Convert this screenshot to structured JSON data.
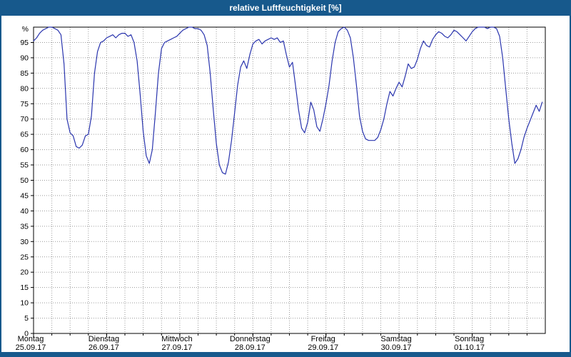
{
  "title": "relative Luftfeuchtigkeit [%]",
  "theme": {
    "titlebar_color": "#17598c",
    "line_color": "#2a35ae",
    "grid_color": "#9a9a9a",
    "axis_color": "#000000",
    "plot_background": "#ffffff",
    "title_text_color": "#ffffff"
  },
  "chart_data": {
    "type": "line",
    "title": "relative Luftfeuchtigkeit [%]",
    "ylabel": "relative Luftfeuchtigkeit",
    "y_unit": "%",
    "ylim": [
      0,
      100
    ],
    "y_step": 5,
    "y_ticks": [
      95,
      90,
      85,
      80,
      75,
      70,
      65,
      60,
      55,
      50,
      45,
      40,
      35,
      30,
      25,
      20,
      15,
      10,
      5,
      0
    ],
    "x_range": [
      0,
      168
    ],
    "x_unit": "hours",
    "x_minor_hours": 6,
    "grid": "dotted",
    "legend": "none",
    "x_days": [
      {
        "name": "Montag",
        "date": "25.09.17"
      },
      {
        "name": "Dienstag",
        "date": "26.09.17"
      },
      {
        "name": "Mittwoch",
        "date": "27.09.17"
      },
      {
        "name": "Donnerstag",
        "date": "28.09.17"
      },
      {
        "name": "Freitag",
        "date": "29.09.17"
      },
      {
        "name": "Samstag",
        "date": "30.09.17"
      },
      {
        "name": "Sonntag",
        "date": "01.10.17"
      }
    ],
    "points": [
      [
        0,
        95.5
      ],
      [
        1,
        96.5
      ],
      [
        2,
        98
      ],
      [
        3,
        99
      ],
      [
        4,
        99.5
      ],
      [
        5,
        100
      ],
      [
        6,
        100
      ],
      [
        7,
        99.5
      ],
      [
        8,
        99
      ],
      [
        9,
        97.5
      ],
      [
        10,
        88
      ],
      [
        11,
        70
      ],
      [
        12,
        65.5
      ],
      [
        13,
        64.5
      ],
      [
        14,
        61
      ],
      [
        15,
        60.5
      ],
      [
        16,
        61.5
      ],
      [
        17,
        64.5
      ],
      [
        18,
        65
      ],
      [
        19,
        71
      ],
      [
        20,
        85
      ],
      [
        21,
        92
      ],
      [
        22,
        95
      ],
      [
        23,
        95.5
      ],
      [
        24,
        96.5
      ],
      [
        25,
        97
      ],
      [
        26,
        97.5
      ],
      [
        27,
        96.5
      ],
      [
        28,
        97.5
      ],
      [
        29,
        98
      ],
      [
        30,
        98
      ],
      [
        31,
        97
      ],
      [
        32,
        97.5
      ],
      [
        33,
        95
      ],
      [
        34,
        89
      ],
      [
        35,
        78
      ],
      [
        36,
        66
      ],
      [
        37,
        58
      ],
      [
        38,
        55.5
      ],
      [
        39,
        60
      ],
      [
        40,
        72
      ],
      [
        41,
        85
      ],
      [
        42,
        93
      ],
      [
        43,
        95
      ],
      [
        44,
        95.5
      ],
      [
        45,
        96
      ],
      [
        46,
        96.5
      ],
      [
        47,
        97
      ],
      [
        48,
        98
      ],
      [
        49,
        99
      ],
      [
        50,
        99.5
      ],
      [
        51,
        100
      ],
      [
        52,
        100
      ],
      [
        53,
        99.5
      ],
      [
        54,
        99.5
      ],
      [
        55,
        99
      ],
      [
        56,
        97.5
      ],
      [
        57,
        94
      ],
      [
        58,
        85
      ],
      [
        59,
        73
      ],
      [
        60,
        62
      ],
      [
        61,
        55
      ],
      [
        62,
        52.5
      ],
      [
        63,
        52
      ],
      [
        64,
        56
      ],
      [
        65,
        63
      ],
      [
        66,
        72
      ],
      [
        67,
        81
      ],
      [
        68,
        87
      ],
      [
        69,
        89
      ],
      [
        70,
        86.5
      ],
      [
        71,
        91
      ],
      [
        72,
        94.5
      ],
      [
        73,
        95.5
      ],
      [
        74,
        96
      ],
      [
        75,
        94.5
      ],
      [
        76,
        95.5
      ],
      [
        77,
        96
      ],
      [
        78,
        96.5
      ],
      [
        79,
        96
      ],
      [
        80,
        96.5
      ],
      [
        81,
        95
      ],
      [
        82,
        95.5
      ],
      [
        83,
        91
      ],
      [
        84,
        87
      ],
      [
        85,
        88.5
      ],
      [
        86,
        81
      ],
      [
        87,
        73
      ],
      [
        88,
        67
      ],
      [
        89,
        65.5
      ],
      [
        90,
        69
      ],
      [
        91,
        75.5
      ],
      [
        92,
        73
      ],
      [
        93,
        67.5
      ],
      [
        94,
        66
      ],
      [
        95,
        70
      ],
      [
        96,
        75
      ],
      [
        97,
        81
      ],
      [
        98,
        89
      ],
      [
        99,
        95
      ],
      [
        100,
        98.5
      ],
      [
        101,
        99.5
      ],
      [
        102,
        100
      ],
      [
        103,
        99
      ],
      [
        104,
        96.5
      ],
      [
        105,
        90
      ],
      [
        106,
        81
      ],
      [
        107,
        71
      ],
      [
        108,
        66
      ],
      [
        109,
        63.5
      ],
      [
        110,
        63
      ],
      [
        111,
        63
      ],
      [
        112,
        63
      ],
      [
        113,
        64
      ],
      [
        114,
        66.5
      ],
      [
        115,
        70
      ],
      [
        116,
        75
      ],
      [
        117,
        79
      ],
      [
        118,
        77.5
      ],
      [
        119,
        80
      ],
      [
        120,
        82
      ],
      [
        121,
        80.5
      ],
      [
        122,
        84
      ],
      [
        123,
        88
      ],
      [
        124,
        86.5
      ],
      [
        125,
        87
      ],
      [
        126,
        89.5
      ],
      [
        127,
        93
      ],
      [
        128,
        95.5
      ],
      [
        129,
        94
      ],
      [
        130,
        93.5
      ],
      [
        131,
        96
      ],
      [
        132,
        97.5
      ],
      [
        133,
        98.5
      ],
      [
        134,
        98
      ],
      [
        135,
        97
      ],
      [
        136,
        96.5
      ],
      [
        137,
        97.5
      ],
      [
        138,
        99
      ],
      [
        139,
        98.5
      ],
      [
        140,
        97.5
      ],
      [
        141,
        96.5
      ],
      [
        142,
        95.5
      ],
      [
        143,
        97
      ],
      [
        144,
        98.5
      ],
      [
        145,
        99.5
      ],
      [
        146,
        100
      ],
      [
        147,
        100
      ],
      [
        148,
        100
      ],
      [
        149,
        99.5
      ],
      [
        150,
        100
      ],
      [
        151,
        100
      ],
      [
        152,
        99.5
      ],
      [
        153,
        97
      ],
      [
        154,
        90
      ],
      [
        155,
        80
      ],
      [
        156,
        70
      ],
      [
        157,
        62
      ],
      [
        158,
        55.5
      ],
      [
        159,
        57
      ],
      [
        160,
        60
      ],
      [
        161,
        64
      ],
      [
        162,
        67
      ],
      [
        163,
        69.5
      ],
      [
        164,
        72
      ],
      [
        165,
        74.5
      ],
      [
        166,
        72.5
      ],
      [
        167,
        75.5
      ]
    ]
  }
}
